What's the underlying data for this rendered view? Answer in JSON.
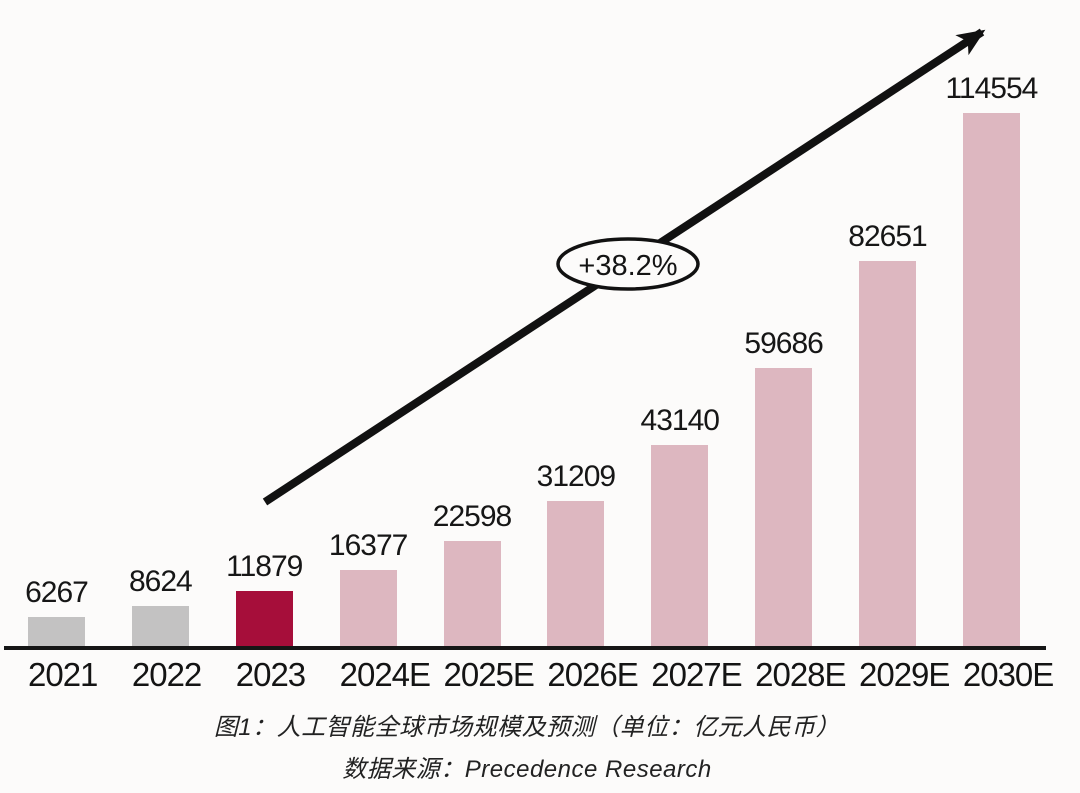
{
  "chart_data": {
    "type": "bar",
    "title": "图1：人工智能全球市场规模及预测（单位：亿元人民币）",
    "source": "数据来源：Precedence Research",
    "categories": [
      "2021",
      "2022",
      "2023",
      "2024E",
      "2025E",
      "2026E",
      "2027E",
      "2028E",
      "2029E",
      "2030E"
    ],
    "values": [
      6267,
      8624,
      11879,
      16377,
      22598,
      31209,
      43140,
      59686,
      82651,
      114554
    ],
    "value_labels": [
      "6267",
      "8624",
      "11879",
      "16377",
      "22598",
      "31209",
      "43140",
      "59686",
      "82651",
      "114554"
    ],
    "xlabel": "",
    "ylabel": "",
    "ylim": [
      0,
      114554
    ],
    "grid": false,
    "legend": "none",
    "bar_color_roles": [
      "historical",
      "historical",
      "current",
      "forecast",
      "forecast",
      "forecast",
      "forecast",
      "forecast",
      "forecast",
      "forecast"
    ],
    "colors": {
      "historical": "#c3c2c2",
      "current": "#a60e3a",
      "forecast": "#ddb7c0",
      "axis": "#161616",
      "arrow": "#111111",
      "annotation_fill": "#fcfbfa",
      "background": "#fcfbfa"
    },
    "annotation": {
      "label": "+38.2%"
    }
  }
}
